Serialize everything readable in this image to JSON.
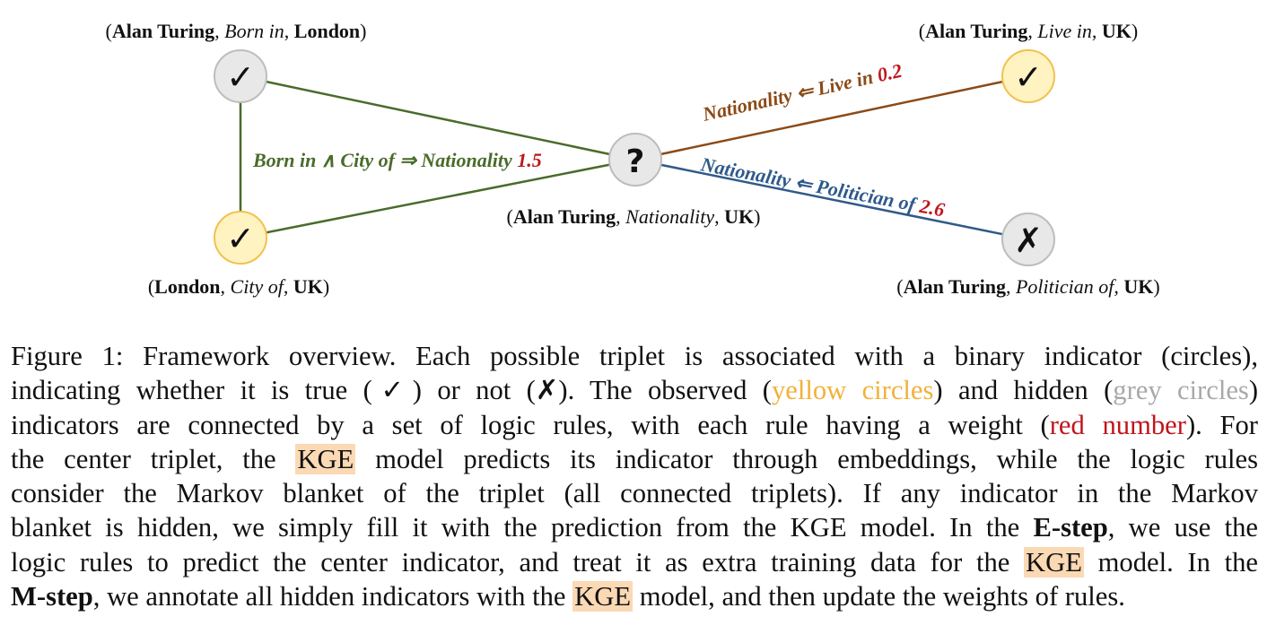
{
  "nodes": {
    "born_in_london": {
      "symbol": "✓",
      "label_subject": "Alan Turing",
      "label_relation": "Born in",
      "label_object": "London"
    },
    "city_of_uk": {
      "symbol": "✓",
      "label_subject": "London",
      "label_relation": "City of",
      "label_object": "UK"
    },
    "center": {
      "symbol": "?",
      "label_subject": "Alan Turing",
      "label_relation": "Nationality",
      "label_object": "UK"
    },
    "live_in_uk": {
      "symbol": "✓",
      "label_subject": "Alan Turing",
      "label_relation": "Live in",
      "label_object": "UK"
    },
    "politician_of_uk": {
      "symbol": "✗",
      "label_subject": "Alan Turing",
      "label_relation": "Politician of",
      "label_object": "UK"
    }
  },
  "rules": {
    "rule1": {
      "text": "Born in ∧ City of ⇒ Nationality",
      "weight": "1.5",
      "color": "#4a6b2a"
    },
    "rule2": {
      "text": "Nationality ⇐ Live in",
      "weight": "0.2",
      "color": "#8b4a16"
    },
    "rule3": {
      "text": "Nationality ⇐ Politician of",
      "weight": "2.6",
      "color": "#2f5a8a"
    }
  },
  "colors": {
    "observed_fill": "#fff3c2",
    "observed_stroke": "#f2c14e",
    "hidden_fill": "#e8e8e8",
    "hidden_stroke": "#bdbdbd",
    "weight": "#c0141c"
  },
  "caption": {
    "l1": "Figure 1: Framework overview. Each possible triplet is associated with a binary indicator (circles),",
    "l2a": "indicating whether it is true (✓) or not (✗). The observed (",
    "l2_yellow": "yellow circles",
    "l2b": ") and hidden (",
    "l2_grey": "grey circles",
    "l2c": ")",
    "l3a": "indicators are connected by a set of logic rules, with each rule having a weight (",
    "l3_red": "red number",
    "l3b": "). For",
    "l4a": "the center triplet, the ",
    "l4_kge": "KGE",
    "l4b": " model predicts its indicator through embeddings, while the logic rules",
    "l5": "consider the Markov blanket of the triplet (all connected triplets). If any indicator in the Markov",
    "l6a": "blanket is hidden, we simply fill it with the prediction from the KGE model. In the ",
    "l6_bold": "E-step",
    "l6b": ", we use the",
    "l7a": "logic rules to predict the center indicator, and treat it as extra training data for the ",
    "l7_kge": "KGE",
    "l7b": " model. In the",
    "l8_bold": "M-step",
    "l8a": ", we annotate all hidden indicators with the ",
    "l8_kge": "KGE",
    "l8b": " model, and then update the weights of rules."
  }
}
